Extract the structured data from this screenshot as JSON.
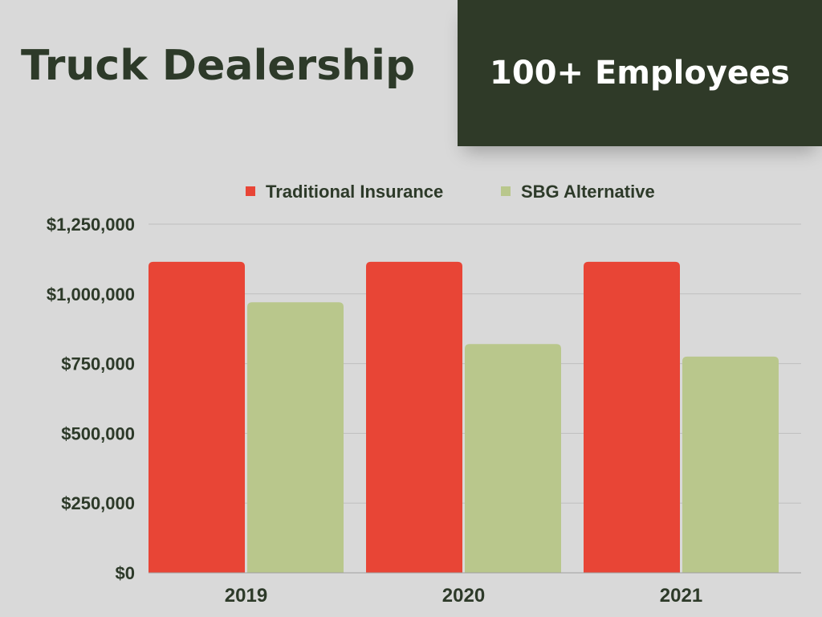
{
  "header": {
    "title": "Truck Dealership",
    "badge": "100+ Employees"
  },
  "chart_data": {
    "type": "bar",
    "categories": [
      "2019",
      "2020",
      "2021"
    ],
    "series": [
      {
        "name": "Traditional Insurance",
        "color": "#e84536",
        "values": [
          1115000,
          1115000,
          1115000
        ]
      },
      {
        "name": "SBG Alternative",
        "color": "#b9c78c",
        "values": [
          970000,
          820000,
          775000
        ]
      }
    ],
    "ylim": [
      0,
      1250000
    ],
    "yticks": [
      {
        "value": 0,
        "label": "$0"
      },
      {
        "value": 250000,
        "label": "$250,000"
      },
      {
        "value": 500000,
        "label": "$500,000"
      },
      {
        "value": 750000,
        "label": "$750,000"
      },
      {
        "value": 1000000,
        "label": "$1,000,000"
      },
      {
        "value": 1250000,
        "label": "$1,250,000"
      }
    ],
    "grid": true,
    "legend_position": "top-center",
    "gridline_color": "#bfbfbf"
  }
}
